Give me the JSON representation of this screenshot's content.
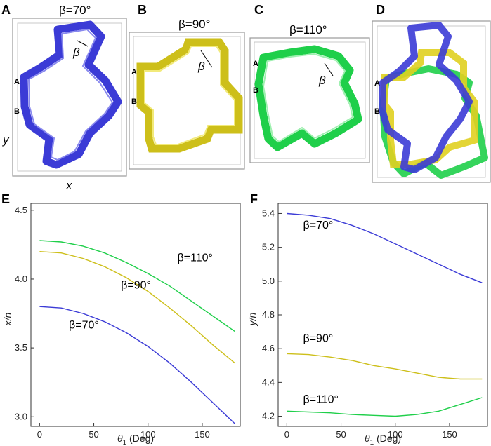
{
  "panels": {
    "A": {
      "letter": "A",
      "title": "β=70°",
      "angle_label": "β",
      "marker_a": "A",
      "marker_b": "B",
      "axis_x": "x",
      "axis_y": "y",
      "color": "#3a3ae0"
    },
    "B": {
      "letter": "B",
      "title": "β=90°",
      "angle_label": "β",
      "marker_a": "A",
      "marker_b": "B",
      "color": "#e0d020"
    },
    "C": {
      "letter": "C",
      "title": "β=110°",
      "angle_label": "β",
      "marker_a": "A",
      "marker_b": "B",
      "color": "#22c83a"
    },
    "D": {
      "letter": "D",
      "marker_a": "A",
      "marker_b": "B"
    }
  },
  "colors": {
    "blue": "#3b3bd6",
    "yellow": "#cdbf1a",
    "green": "#1fcf4a"
  },
  "chart_data": [
    {
      "panel": "E",
      "type": "line",
      "xlabel_main": "θ",
      "xlabel_sub": "1",
      "xlabel_unit": " (Deg)",
      "ylabel": "x/n",
      "xlim": [
        -8,
        185
      ],
      "ylim": [
        2.93,
        4.55
      ],
      "xticks": [
        0,
        50,
        100,
        150
      ],
      "yticks": [
        3.0,
        3.5,
        4.0,
        4.5
      ],
      "ytick_labels": [
        "3.0",
        "3.5",
        "4.0",
        "4.5"
      ],
      "series": [
        {
          "name": "β=110°",
          "color": "#1fcf4a",
          "x": [
            0,
            20,
            40,
            60,
            80,
            100,
            120,
            140,
            160,
            180
          ],
          "y": [
            4.28,
            4.27,
            4.24,
            4.19,
            4.12,
            4.04,
            3.95,
            3.84,
            3.73,
            3.62
          ]
        },
        {
          "name": "β=90°",
          "color": "#cdbf1a",
          "x": [
            0,
            20,
            40,
            60,
            80,
            100,
            120,
            140,
            160,
            180
          ],
          "y": [
            4.2,
            4.19,
            4.15,
            4.09,
            4.01,
            3.91,
            3.79,
            3.66,
            3.52,
            3.39
          ]
        },
        {
          "name": "β=70°",
          "color": "#3b3bd6",
          "x": [
            0,
            20,
            40,
            60,
            80,
            100,
            120,
            140,
            160,
            180
          ],
          "y": [
            3.8,
            3.79,
            3.75,
            3.69,
            3.61,
            3.51,
            3.39,
            3.25,
            3.1,
            2.95
          ]
        }
      ],
      "labels": [
        {
          "text": "β=110°",
          "x": 127,
          "y": 4.13
        },
        {
          "text": "β=90°",
          "x": 75,
          "y": 3.93
        },
        {
          "text": "β=70°",
          "x": 27,
          "y": 3.64
        }
      ]
    },
    {
      "panel": "F",
      "type": "line",
      "xlabel_main": "θ",
      "xlabel_sub": "1",
      "xlabel_unit": " (Deg)",
      "ylabel": "y/n",
      "xlim": [
        -8,
        185
      ],
      "ylim": [
        4.14,
        5.46
      ],
      "xticks": [
        0,
        50,
        100,
        150
      ],
      "yticks": [
        4.2,
        4.4,
        4.6,
        4.8,
        5.0,
        5.2,
        5.4
      ],
      "ytick_labels": [
        "4.2",
        "4.4",
        "4.6",
        "4.8",
        "5.0",
        "5.2",
        "5.4"
      ],
      "series": [
        {
          "name": "β=70°",
          "color": "#3b3bd6",
          "x": [
            0,
            20,
            40,
            60,
            80,
            100,
            120,
            140,
            160,
            180
          ],
          "y": [
            5.4,
            5.39,
            5.37,
            5.33,
            5.28,
            5.22,
            5.16,
            5.1,
            5.04,
            4.99
          ]
        },
        {
          "name": "β=90°",
          "color": "#cdbf1a",
          "x": [
            0,
            20,
            40,
            60,
            80,
            100,
            120,
            140,
            160,
            180
          ],
          "y": [
            4.57,
            4.565,
            4.55,
            4.53,
            4.5,
            4.48,
            4.455,
            4.43,
            4.42,
            4.42
          ]
        },
        {
          "name": "β=110°",
          "color": "#1fcf4a",
          "x": [
            0,
            20,
            40,
            60,
            80,
            100,
            120,
            140,
            160,
            180
          ],
          "y": [
            4.23,
            4.225,
            4.22,
            4.21,
            4.205,
            4.2,
            4.21,
            4.23,
            4.27,
            4.31
          ]
        }
      ],
      "labels": [
        {
          "text": "β=70°",
          "x": 15,
          "y": 5.31
        },
        {
          "text": "β=90°",
          "x": 15,
          "y": 4.64
        },
        {
          "text": "β=110°",
          "x": 15,
          "y": 4.28
        }
      ]
    }
  ]
}
